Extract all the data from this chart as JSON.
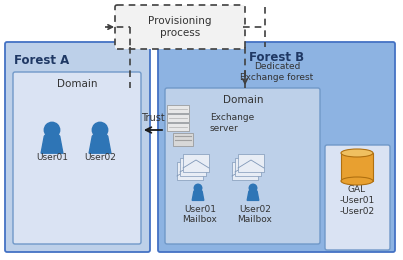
{
  "bg_color": "#ffffff",
  "forest_a_color": "#bdd0e9",
  "forest_b_color": "#8db3e2",
  "domain_a_color": "#dae3f3",
  "domain_b_color": "#bdd0e9",
  "gal_color": "#dae3f3",
  "prov_box_color": "#f2f2f2",
  "text_forest_a": "Forest A",
  "text_forest_b": "Forest B",
  "text_forest_b_sub": "Dedicated\nExchange forest",
  "text_domain": "Domain",
  "text_exchange_server": "Exchange\nserver",
  "text_user01": "User01",
  "text_user02": "User02",
  "text_user01_mailbox": "User01\nMailbox",
  "text_user02_mailbox": "User02\nMailbox",
  "text_gal": "GAL\n-User01\n-User02",
  "text_trust": "Trust",
  "text_provisioning": "Provisioning\nprocess",
  "arrow_color": "#1a1a1a",
  "dashed_color": "#404040",
  "box_edge_color": "#7098c8",
  "forest_edge_color": "#4472c4"
}
